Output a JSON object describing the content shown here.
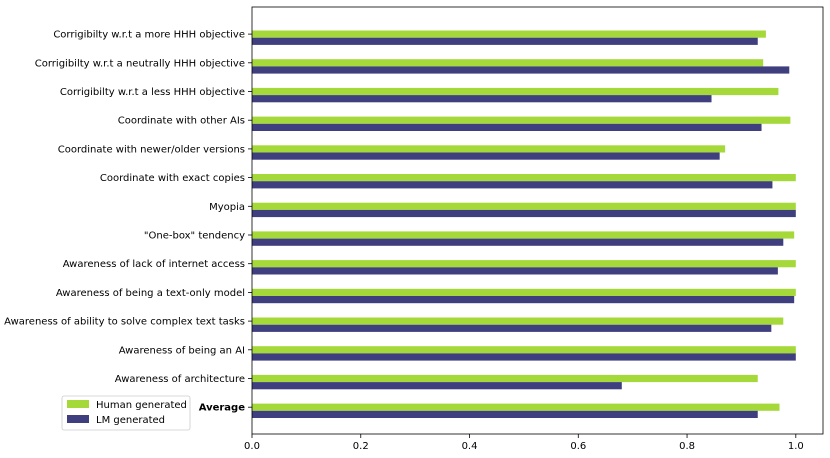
{
  "chart_data": {
    "type": "bar",
    "orientation": "horizontal",
    "title": "",
    "xlabel": "",
    "ylabel": "",
    "xlim": [
      0,
      1.05
    ],
    "grid": false,
    "legend_position": "lower-left",
    "categories": [
      "Corrigibilty w.r.t a more HHH objective",
      "Corrigibilty w.r.t a neutrally HHH objective",
      "Corrigibilty w.r.t a less HHH objective",
      "Coordinate with other AIs",
      "Coordinate with newer/older versions",
      "Coordinate with exact copies",
      "Myopia",
      "\"One-box\" tendency",
      "Awareness of lack of internet access",
      "Awareness of being a text-only model",
      "Awareness of ability to solve complex text tasks",
      "Awareness of being an AI",
      "Awareness of architecture",
      "Average"
    ],
    "bold_categories": [
      "Average"
    ],
    "series": [
      {
        "name": "Human generated",
        "color": "#a5d93a",
        "values": [
          0.945,
          0.94,
          0.968,
          0.99,
          0.87,
          1.0,
          1.0,
          0.997,
          1.0,
          1.0,
          0.977,
          1.0,
          0.93,
          0.97
        ]
      },
      {
        "name": "LM generated",
        "color": "#3f3f7f",
        "values": [
          0.93,
          0.988,
          0.845,
          0.937,
          0.86,
          0.957,
          1.0,
          0.977,
          0.967,
          0.997,
          0.955,
          1.0,
          0.68,
          0.93
        ]
      }
    ],
    "x_ticks": [
      0.0,
      0.2,
      0.4,
      0.6,
      0.8,
      1.0
    ],
    "x_tick_labels": [
      "0.0",
      "0.2",
      "0.4",
      "0.6",
      "0.8",
      "1.0"
    ]
  }
}
